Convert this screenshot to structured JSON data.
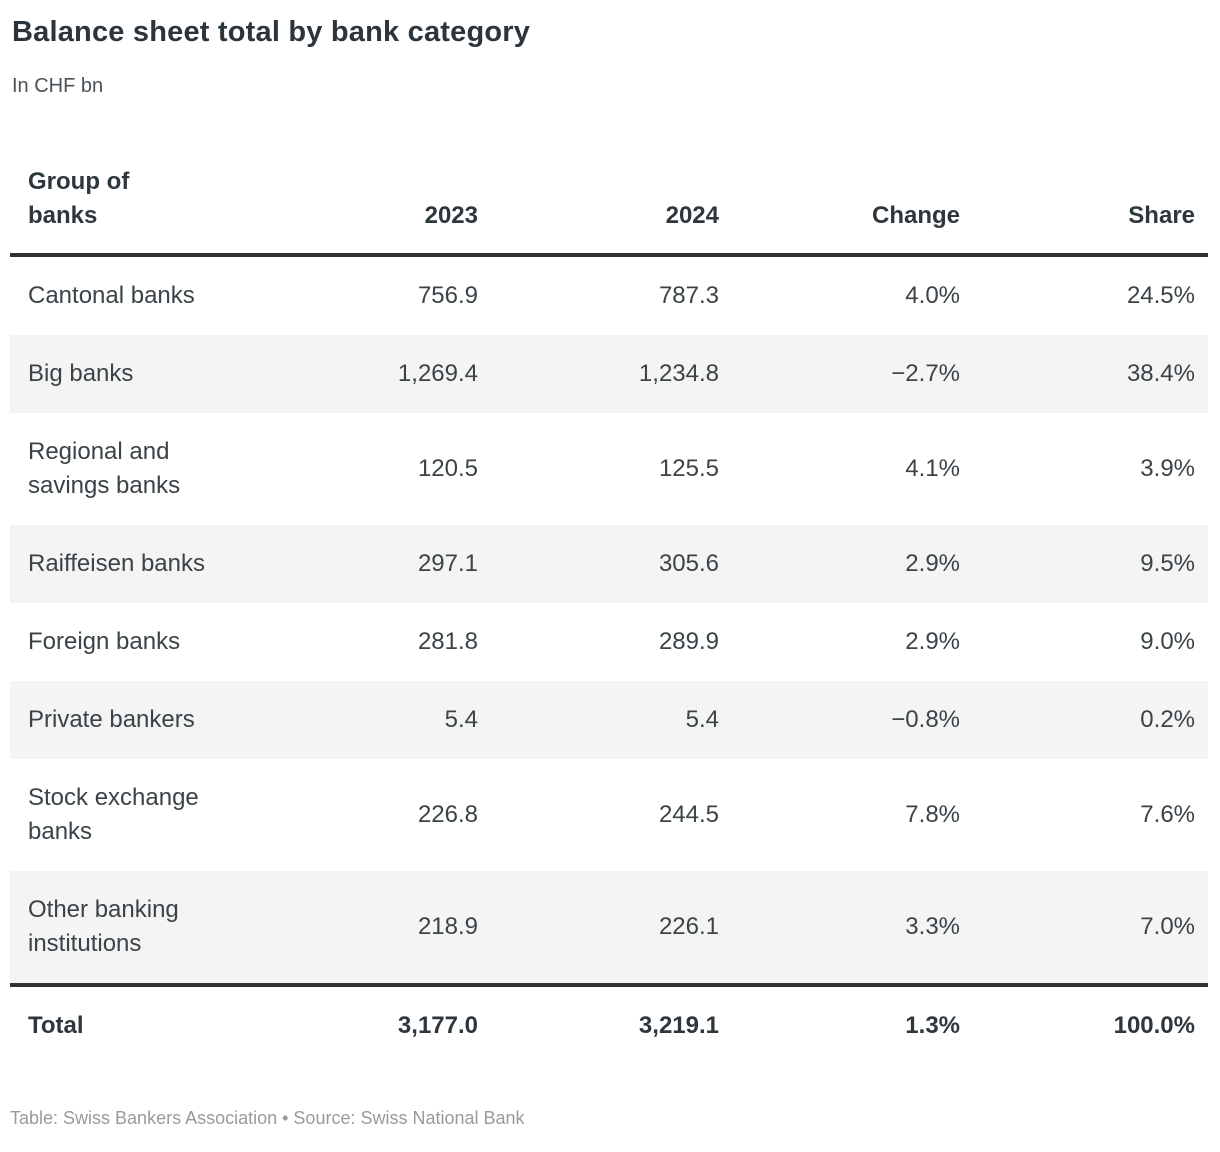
{
  "title": "Balance sheet total by bank category",
  "subtitle": "In CHF bn",
  "chart_data": {
    "type": "table",
    "title": "Balance sheet total by bank category",
    "subtitle": "In CHF bn",
    "unit": "CHF bn",
    "columns": [
      "Group of banks",
      "2023",
      "2024",
      "Change",
      "Share"
    ],
    "rows": [
      [
        "Cantonal banks",
        "756.9",
        "787.3",
        "4.0%",
        "24.5%"
      ],
      [
        "Big banks",
        "1,269.4",
        "1,234.8",
        "−2.7%",
        "38.4%"
      ],
      [
        "Regional and savings banks",
        "120.5",
        "125.5",
        "4.1%",
        "3.9%"
      ],
      [
        "Raiffeisen banks",
        "297.1",
        "305.6",
        "2.9%",
        "9.5%"
      ],
      [
        "Foreign banks",
        "281.8",
        "289.9",
        "2.9%",
        "9.0%"
      ],
      [
        "Private bankers",
        "5.4",
        "5.4",
        "−0.8%",
        "0.2%"
      ],
      [
        "Stock exchange banks",
        "226.8",
        "244.5",
        "7.8%",
        "7.6%"
      ],
      [
        "Other banking institutions",
        "218.9",
        "226.1",
        "3.3%",
        "7.0%"
      ]
    ],
    "total_row": [
      "Total",
      "3,177.0",
      "3,219.1",
      "1.3%",
      "100.0%"
    ],
    "layout": {
      "stripe_color": "#f4f4f4",
      "rule_color": "#2f3338",
      "text_color": "#3a4347",
      "footnote_color": "#9a9a9a"
    }
  },
  "footer": {
    "text": "Table: Swiss Bankers Association • Source: Swiss National Bank"
  }
}
